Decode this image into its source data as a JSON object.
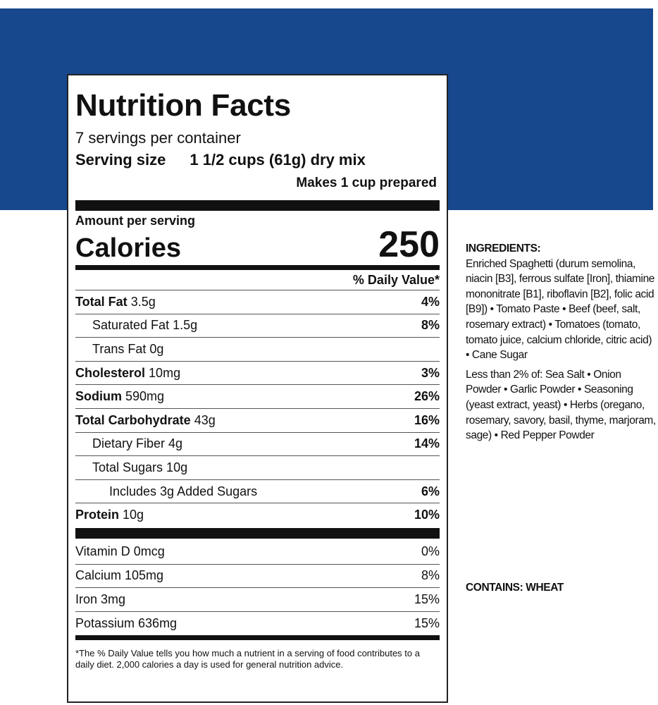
{
  "colors": {
    "band": "#17478c"
  },
  "label": {
    "title": "Nutrition Facts",
    "servings": "7 servings per container",
    "serving_size_label": "Serving size",
    "serving_size_value": "1 1/2 cups (61g) dry mix",
    "makes": "Makes 1 cup prepared",
    "amount_per_serving": "Amount per serving",
    "calories_label": "Calories",
    "calories_value": "250",
    "dv_header": "% Daily Value*",
    "nutrients": [
      {
        "name": "Total Fat",
        "amount": "3.5g",
        "dv": "4%"
      },
      {
        "name": "Saturated Fat 1.5g",
        "amount": "",
        "dv": "8%"
      },
      {
        "name": "Trans Fat 0g",
        "amount": "",
        "dv": ""
      },
      {
        "name": "Cholesterol",
        "amount": "10mg",
        "dv": "3%"
      },
      {
        "name": "Sodium",
        "amount": "590mg",
        "dv": "26%"
      },
      {
        "name": "Total Carbohydrate",
        "amount": "43g",
        "dv": "16%"
      },
      {
        "name": "Dietary Fiber 4g",
        "amount": "",
        "dv": "14%"
      },
      {
        "name": "Total Sugars 10g",
        "amount": "",
        "dv": ""
      },
      {
        "name": "Includes 3g Added Sugars",
        "amount": "",
        "dv": "6%"
      },
      {
        "name": "Protein",
        "amount": "10g",
        "dv": "10%"
      }
    ],
    "vitamins": [
      {
        "name": "Vitamin D 0mcg",
        "dv": "0%"
      },
      {
        "name": "Calcium 105mg",
        "dv": "8%"
      },
      {
        "name": "Iron 3mg",
        "dv": "15%"
      },
      {
        "name": "Potassium 636mg",
        "dv": "15%"
      }
    ],
    "footnote": "*The % Daily Value tells you how much a nutrient in a serving of food contributes to a daily diet. 2,000 calories a day is used for general nutrition advice."
  },
  "ingredients": {
    "heading": "INGREDIENTS:",
    "main": "Enriched Spaghetti (durum semolina, niacin [B3], ferrous sulfate [Iron], thiamine mononitrate [B1], riboflavin [B2], folic acid [B9]) • Tomato Paste • Beef (beef, salt, rosemary extract) • Tomatoes (tomato, tomato juice, calcium chloride, citric acid) • Cane Sugar",
    "minor": "Less than 2% of: Sea Salt • Onion Powder • Garlic Powder • Seasoning (yeast extract, yeast) • Herbs (oregano, rosemary, savory, basil, thyme, marjoram, sage) • Red Pepper Powder",
    "contains": "CONTAINS: WHEAT"
  }
}
